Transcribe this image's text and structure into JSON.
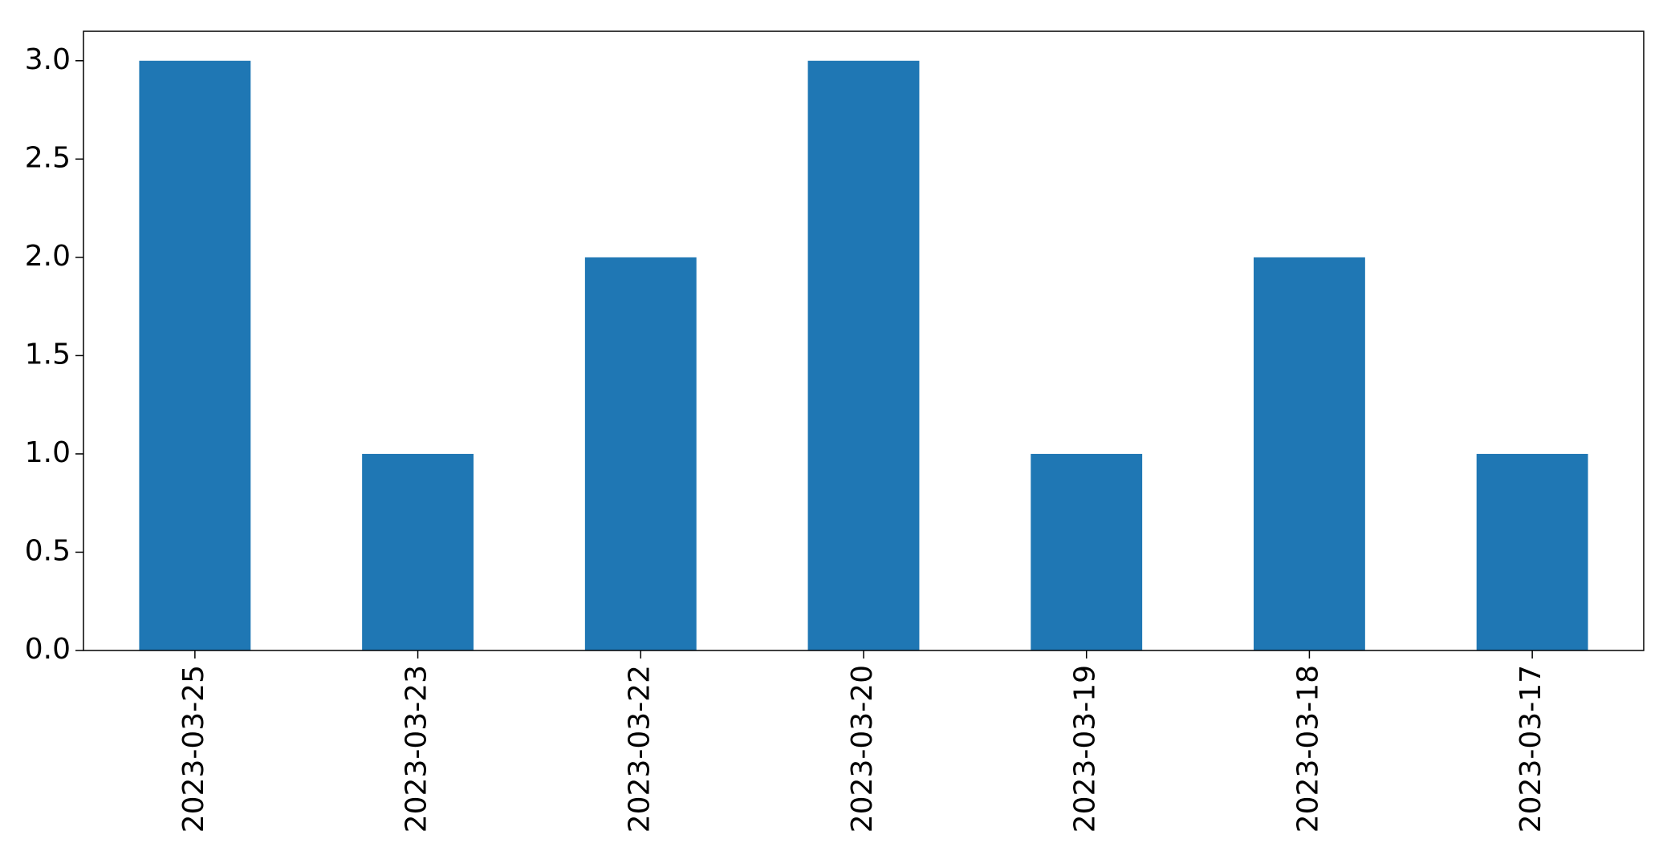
{
  "chart_data": {
    "type": "bar",
    "categories": [
      "2023-03-25",
      "2023-03-23",
      "2023-03-22",
      "2023-03-20",
      "2023-03-19",
      "2023-03-18",
      "2023-03-17"
    ],
    "values": [
      3,
      1,
      2,
      3,
      1,
      2,
      1
    ],
    "title": "",
    "xlabel": "",
    "ylabel": "",
    "ylim": [
      0,
      3.15
    ],
    "yticks": [
      "0.0",
      "0.5",
      "1.0",
      "1.5",
      "2.0",
      "2.5",
      "3.0"
    ],
    "grid": false,
    "bar_color": "#1f77b4"
  }
}
